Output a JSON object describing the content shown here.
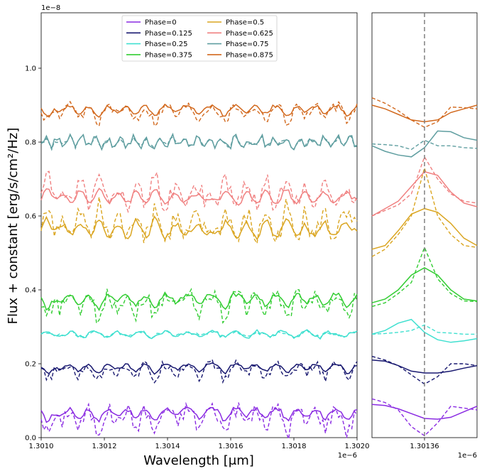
{
  "chart_data": {
    "type": "line",
    "y_label": "Flux + constant [erg/s/cm²/Hz]",
    "y_exponent": "1e−8",
    "left_panel": {
      "x_label": "Wavelength [μm]",
      "x_exponent": "1e−6",
      "xlim": [
        1.301,
        1.302
      ],
      "ylim": [
        0,
        1.15
      ],
      "x_ticks": [
        1.301,
        1.3012,
        1.3014,
        1.3016,
        1.3018,
        1.302
      ],
      "x_tick_labels": [
        "1.3010",
        "1.3012",
        "1.3014",
        "1.3016",
        "1.3018",
        "1.3020"
      ],
      "y_ticks": [
        0.0,
        0.2,
        0.4,
        0.6,
        0.8,
        1.0
      ],
      "y_tick_labels": [
        "0.0",
        "0.2",
        "0.4",
        "0.6",
        "0.8",
        "1.0"
      ]
    },
    "right_panel": {
      "xlim": [
        1.301345,
        1.301375
      ],
      "x_ticks": [
        1.30136
      ],
      "x_tick_labels": [
        "1.30136"
      ],
      "x_exponent": "1e−6",
      "vline_x": 1.30136
    },
    "legend": {
      "position": "upper-center",
      "columns": 2,
      "entries": [
        "Phase=0",
        "Phase=0.125",
        "Phase=0.25",
        "Phase=0.375",
        "Phase=0.5",
        "Phase=0.625",
        "Phase=0.75",
        "Phase=0.875"
      ]
    },
    "series": [
      {
        "name": "Phase=0",
        "color": "#8a2be2",
        "offset": 0.08,
        "amp_solid": 0.035,
        "amp_dashed": 0.06,
        "zoom_solid": [
          0.09,
          0.087,
          0.078,
          0.065,
          0.052,
          0.05,
          0.055,
          0.07,
          0.085
        ],
        "zoom_dashed": [
          0.105,
          0.095,
          0.075,
          0.03,
          0.005,
          0.04,
          0.085,
          0.08,
          0.075
        ]
      },
      {
        "name": "Phase=0.125",
        "color": "#191970",
        "offset": 0.2,
        "amp_solid": 0.025,
        "amp_dashed": 0.04,
        "zoom_solid": [
          0.21,
          0.207,
          0.195,
          0.18,
          0.175,
          0.175,
          0.18,
          0.188,
          0.195
        ],
        "zoom_dashed": [
          0.22,
          0.21,
          0.195,
          0.17,
          0.145,
          0.165,
          0.2,
          0.2,
          0.195
        ]
      },
      {
        "name": "Phase=0.25",
        "color": "#40e0d0",
        "offset": 0.28,
        "amp_solid": 0.015,
        "amp_dashed": 0.01,
        "zoom_solid": [
          0.28,
          0.29,
          0.31,
          0.32,
          0.285,
          0.265,
          0.258,
          0.262,
          0.268
        ],
        "zoom_dashed": [
          0.28,
          0.282,
          0.285,
          0.29,
          0.305,
          0.285,
          0.283,
          0.28,
          0.28
        ]
      },
      {
        "name": "Phase=0.375",
        "color": "#32cd32",
        "offset": 0.39,
        "amp_solid": 0.04,
        "amp_dashed": 0.06,
        "zoom_solid": [
          0.365,
          0.375,
          0.4,
          0.44,
          0.46,
          0.44,
          0.4,
          0.375,
          0.37
        ],
        "zoom_dashed": [
          0.355,
          0.365,
          0.39,
          0.42,
          0.515,
          0.43,
          0.39,
          0.37,
          0.368
        ]
      },
      {
        "name": "Phase=0.5",
        "color": "#daa520",
        "offset": 0.55,
        "amp_solid": 0.05,
        "amp_dashed": 0.08,
        "zoom_solid": [
          0.51,
          0.52,
          0.56,
          0.605,
          0.62,
          0.61,
          0.58,
          0.54,
          0.52
        ],
        "zoom_dashed": [
          0.49,
          0.51,
          0.55,
          0.6,
          0.73,
          0.6,
          0.55,
          0.52,
          0.515
        ]
      },
      {
        "name": "Phase=0.625",
        "color": "#f08080",
        "offset": 0.64,
        "amp_solid": 0.04,
        "amp_dashed": 0.07,
        "zoom_solid": [
          0.6,
          0.62,
          0.64,
          0.68,
          0.72,
          0.71,
          0.665,
          0.635,
          0.625
        ],
        "zoom_dashed": [
          0.6,
          0.615,
          0.63,
          0.66,
          0.76,
          0.7,
          0.66,
          0.64,
          0.635
        ]
      },
      {
        "name": "Phase=0.75",
        "color": "#5f9ea0",
        "offset": 0.8,
        "amp_solid": 0.02,
        "amp_dashed": 0.015,
        "zoom_solid": [
          0.79,
          0.775,
          0.765,
          0.76,
          0.785,
          0.83,
          0.828,
          0.812,
          0.805
        ],
        "zoom_dashed": [
          0.795,
          0.793,
          0.79,
          0.78,
          0.805,
          0.79,
          0.79,
          0.785,
          0.783
        ]
      },
      {
        "name": "Phase=0.875",
        "color": "#d2691e",
        "offset": 0.9,
        "amp_solid": 0.03,
        "amp_dashed": 0.04,
        "zoom_solid": [
          0.9,
          0.89,
          0.875,
          0.86,
          0.855,
          0.86,
          0.88,
          0.89,
          0.9
        ],
        "zoom_dashed": [
          0.92,
          0.905,
          0.885,
          0.86,
          0.84,
          0.855,
          0.895,
          0.893,
          0.89
        ]
      }
    ]
  }
}
